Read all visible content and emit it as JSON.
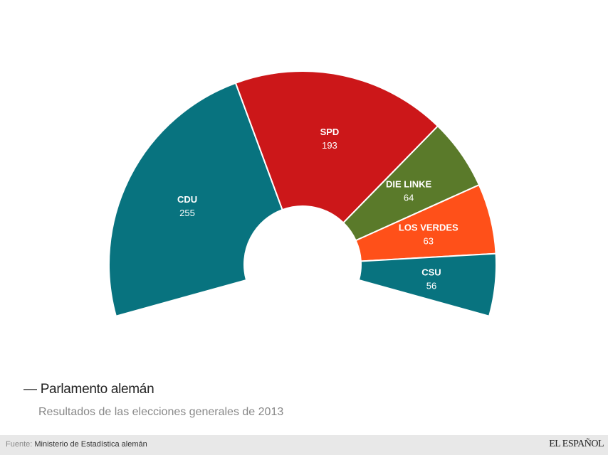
{
  "chart_data": {
    "type": "pie",
    "variant": "semi-donut (parliament)",
    "categories": [
      "CDU",
      "SPD",
      "DIE LINKE",
      "LOS VERDES",
      "CSU"
    ],
    "values": [
      255,
      193,
      64,
      63,
      56
    ],
    "colors": [
      "#08737f",
      "#cc1719",
      "#5a7a2a",
      "#ff5019",
      "#08737f"
    ],
    "title": "Parlamento alemán",
    "subtitle": "Resultados de las elecciones generales de 2013"
  },
  "footer": {
    "source_label": "Fuente:",
    "source": "Ministerio de Estadística alemán",
    "logo": "EL ESPAÑOL"
  }
}
